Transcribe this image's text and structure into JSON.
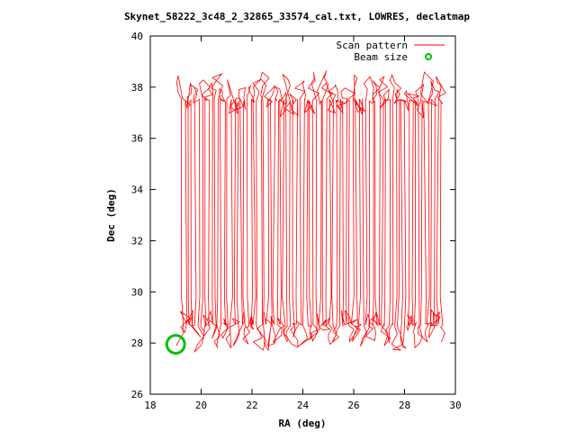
{
  "chart_data": {
    "type": "line",
    "title": "Skynet_58222_3c48_2_32865_33574_cal.txt, LOWRES, declatmap",
    "xlabel": "RA (deg)",
    "ylabel": "Dec (deg)",
    "xlim": [
      18,
      30
    ],
    "ylim": [
      26,
      40
    ],
    "xticks": [
      18,
      20,
      22,
      24,
      26,
      28,
      30
    ],
    "yticks": [
      26,
      28,
      30,
      32,
      34,
      36,
      38,
      40
    ],
    "grid": false,
    "legend_position": "top-right",
    "series": [
      {
        "name": "Scan pattern",
        "color": "#ff0000",
        "style": "line",
        "pattern": "declination raster (boustrophedon)",
        "ra_range": [
          19.0,
          29.5
        ],
        "dec_range": [
          27.6,
          38.7
        ],
        "dec_turnaround_low": [
          27.6,
          28.7
        ],
        "dec_turnaround_high": [
          37.5,
          38.7
        ],
        "dense_bands_dec": [
          28.7,
          29.8,
          37.5
        ],
        "num_scans": 80
      },
      {
        "name": "Beam size",
        "color": "#00c000",
        "style": "circle",
        "center": [
          19.0,
          27.95
        ],
        "radius_deg": 0.35
      }
    ]
  }
}
